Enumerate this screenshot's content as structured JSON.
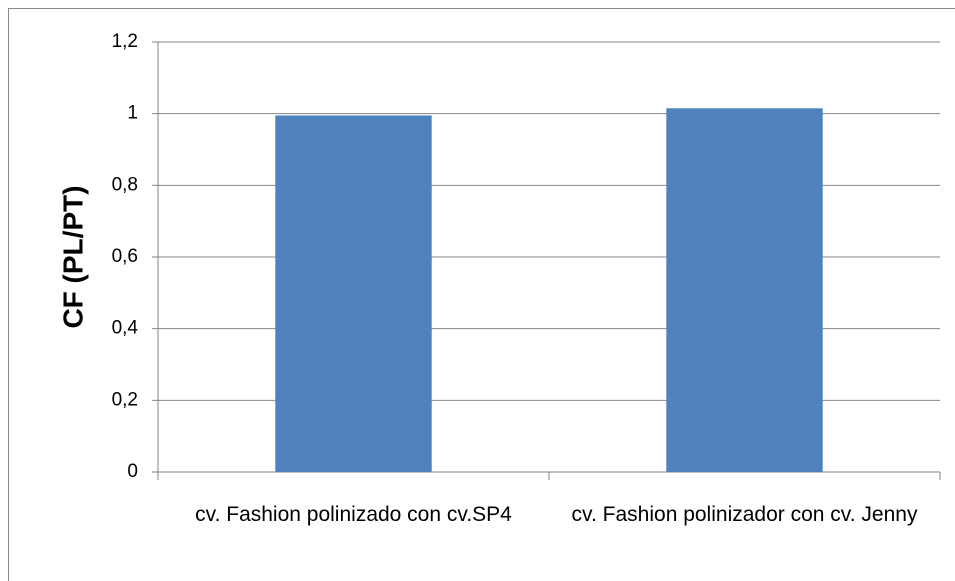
{
  "chart_data": {
    "type": "bar",
    "y_label": "CF (PL/PT)",
    "categories": [
      "cv. Fashion polinizado con cv.SP4",
      "cv. Fashion polinizador con cv. Jenny"
    ],
    "values": [
      0.995,
      1.015
    ],
    "color": "#4f81bd",
    "ylim": [
      0,
      1.2
    ],
    "yticks": [
      0,
      {
        "value": 0.2,
        "label": "0,2"
      },
      {
        "value": 0.4,
        "label": "0,4"
      },
      {
        "value": 0.6,
        "label": "0,6"
      },
      {
        "value": 0.8,
        "label": "0,8"
      },
      1,
      {
        "value": 1.2,
        "label": "1,2"
      }
    ],
    "grid": true
  }
}
